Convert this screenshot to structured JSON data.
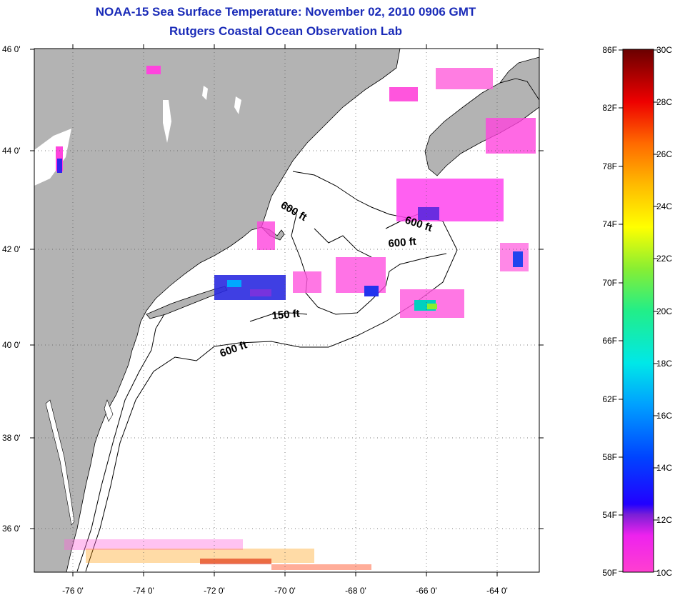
{
  "header": {
    "title_line1": "NOAA-15 Sea Surface Temperature:  November 02, 2010 0906 GMT",
    "title_line2": "Rutgers Coastal Ocean Observation Lab"
  },
  "map": {
    "lat_labels": [
      "46 0'",
      "44 0'",
      "42 0'",
      "40 0'",
      "38 0'",
      "36 0'"
    ],
    "lon_labels": [
      "-76 0'",
      "-74 0'",
      "-72 0'",
      "-70 0'",
      "-68 0'",
      "-66 0'",
      "-64 0'"
    ],
    "contour_labels": [
      "600 ft",
      "600 ft",
      "600 ft",
      "150 ft",
      "600 ft"
    ],
    "land_color": "#b3b3b3",
    "ocean_color": "#ffffff"
  },
  "colorbar": {
    "fahrenheit_labels": [
      "86F",
      "82F",
      "78F",
      "74F",
      "70F",
      "66F",
      "62F",
      "58F",
      "54F",
      "50F"
    ],
    "celsius_labels": [
      "30C",
      "28C",
      "26C",
      "24C",
      "22C",
      "20C",
      "18C",
      "16C",
      "14C",
      "12C",
      "10C"
    ]
  }
}
